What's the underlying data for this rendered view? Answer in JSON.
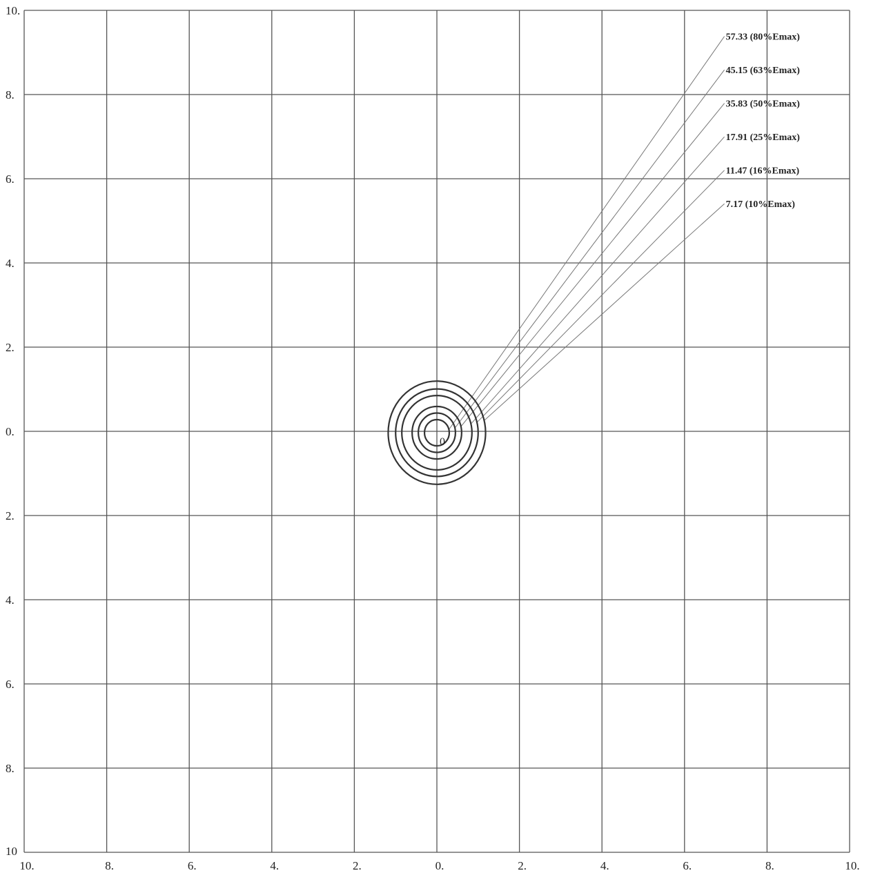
{
  "chart_data": {
    "type": "contour",
    "x_ticks": [
      "10.",
      "8.",
      "6.",
      "4.",
      "2.",
      "0.",
      "2.",
      "4.",
      "6.",
      "8.",
      "10."
    ],
    "y_ticks": [
      "10.",
      "8.",
      "6.",
      "4.",
      "2.",
      "0.",
      "2.",
      "4.",
      "6.",
      "8.",
      "10"
    ],
    "xlim": [
      -10,
      10
    ],
    "ylim": [
      -10,
      10
    ],
    "grid": true,
    "grid_step": 2,
    "center": {
      "x": 0,
      "y": 0,
      "label": "0"
    },
    "contours": [
      {
        "label": "57.33  (80%Emax)",
        "radius": 0.3
      },
      {
        "label": "45.15  (63%Emax)",
        "radius": 0.45
      },
      {
        "label": "35.83  (50%Emax)",
        "radius": 0.6
      },
      {
        "label": "17.91  (25%Emax)",
        "radius": 0.85
      },
      {
        "label": "11.47  (16%Emax)",
        "radius": 1.0
      },
      {
        "label": "7.17  (10%Emax)",
        "radius": 1.18
      }
    ],
    "colors": {
      "grid": "#555555",
      "contour": "#333333",
      "leader": "#777777"
    }
  }
}
